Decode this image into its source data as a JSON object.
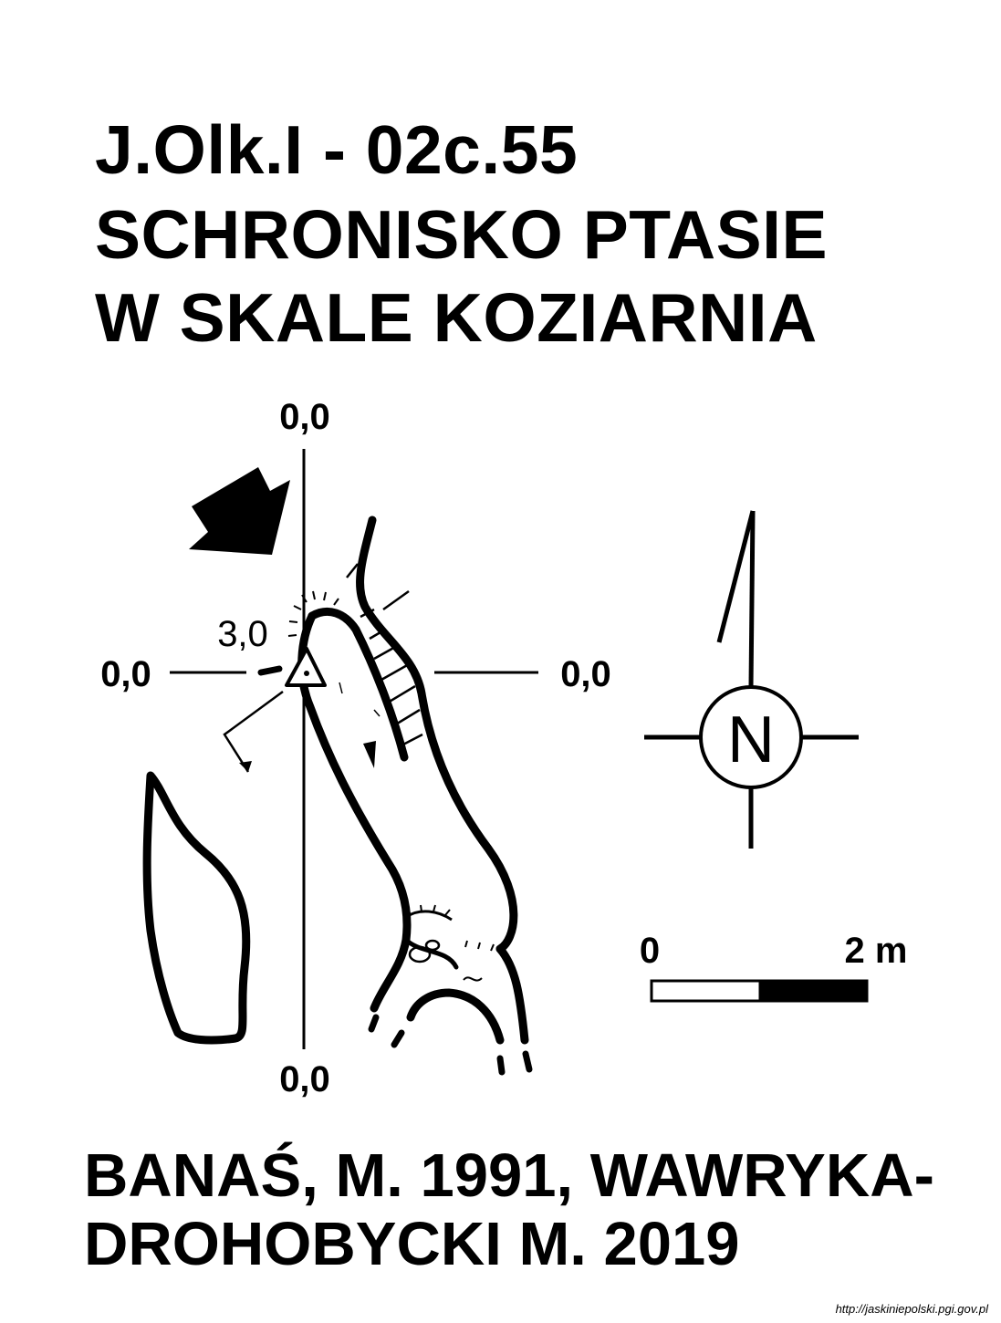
{
  "title": {
    "line1": "J.Olk.I - 02c.55",
    "line2": "SCHRONISKO PTASIE",
    "line3": "W SKALE KOZIARNIA"
  },
  "grid_labels": {
    "top": "0,0",
    "left": "0,0",
    "right": "0,0",
    "bottom": "0,0",
    "entrance_height": "3,0"
  },
  "compass": {
    "north_label": "N"
  },
  "scale_bar": {
    "start_label": "0",
    "end_label": "2 m"
  },
  "authors": {
    "line1": "BANAŚ, M. 1991, WAWRYKA-",
    "line2": "DROHOBYCKI M. 2019"
  },
  "source_url": "http://jaskiniepolski.pgi.gov.pl"
}
